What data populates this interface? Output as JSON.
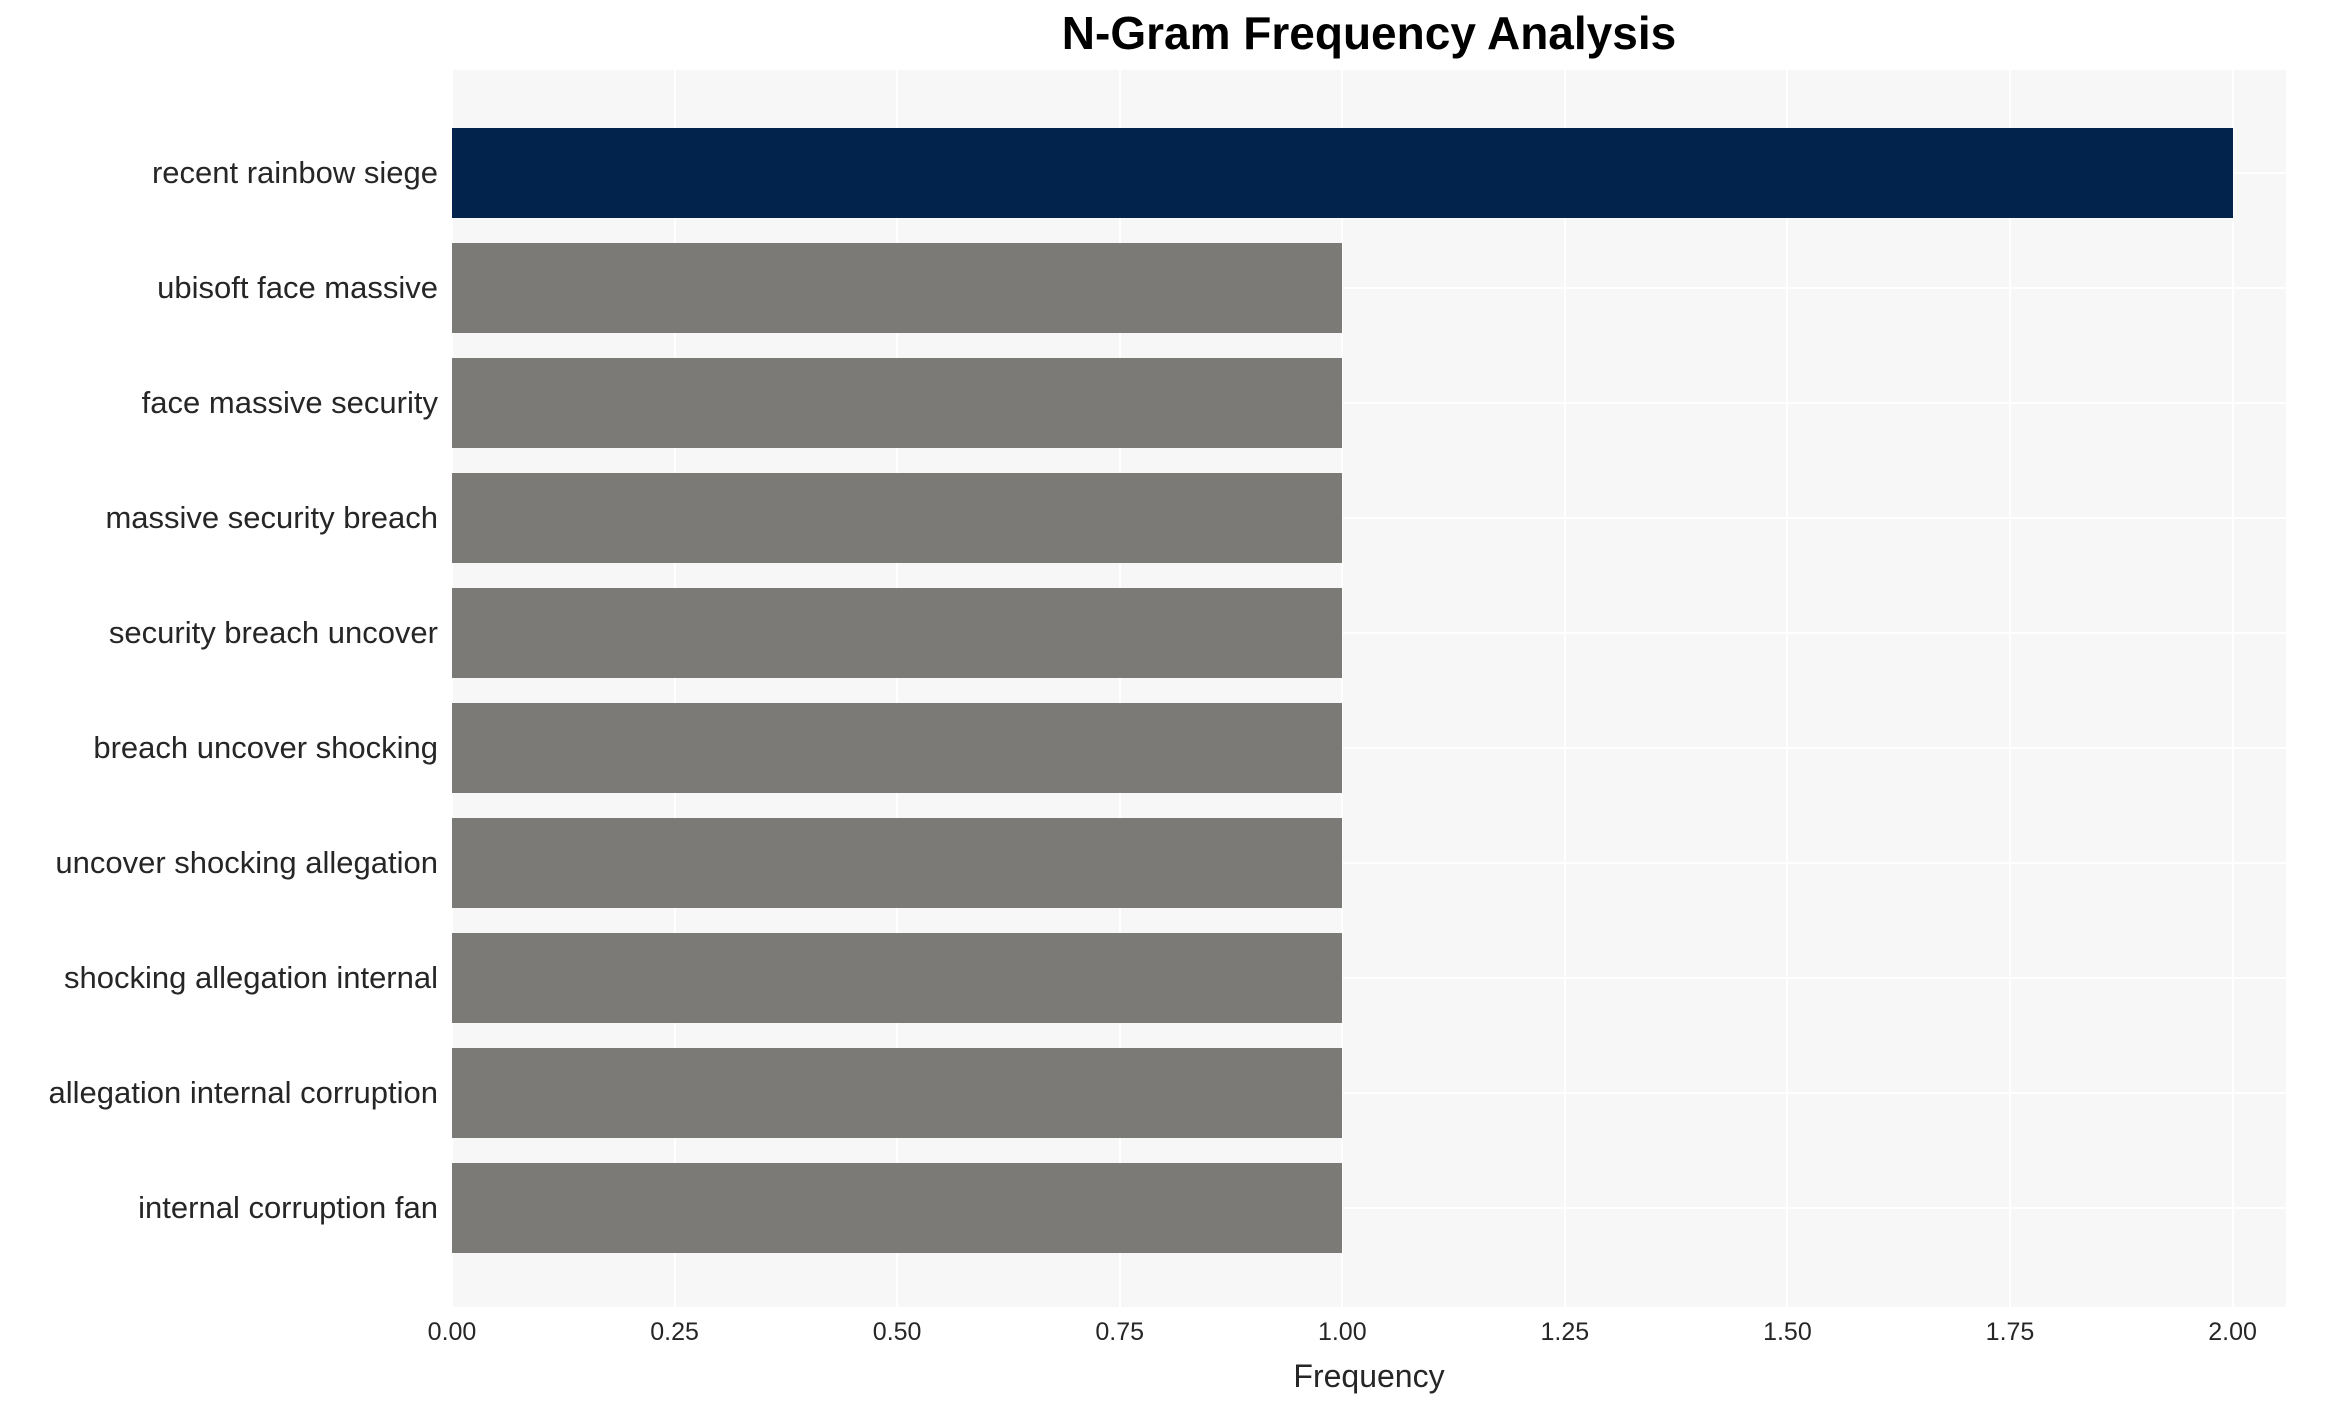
{
  "chart_data": {
    "type": "bar",
    "orientation": "horizontal",
    "title": "N-Gram Frequency Analysis",
    "xlabel": "Frequency",
    "ylabel": "",
    "categories": [
      "recent rainbow siege",
      "ubisoft face massive",
      "face massive security",
      "massive security breach",
      "security breach uncover",
      "breach uncover shocking",
      "uncover shocking allegation",
      "shocking allegation internal",
      "allegation internal corruption",
      "internal corruption fan"
    ],
    "values": [
      2,
      1,
      1,
      1,
      1,
      1,
      1,
      1,
      1,
      1
    ],
    "bar_colors": [
      "#02234C",
      "#7B7A77",
      "#7B7A77",
      "#7B7A77",
      "#7B7A77",
      "#7B7A77",
      "#7B7A77",
      "#7B7A77",
      "#7B7A77",
      "#7B7A77"
    ],
    "xlim": [
      0,
      2.06
    ],
    "xtick_labels": [
      "0.00",
      "0.25",
      "0.50",
      "0.75",
      "1.00",
      "1.25",
      "1.50",
      "1.75",
      "2.00"
    ],
    "xtick_values": [
      0,
      0.25,
      0.5,
      0.75,
      1.0,
      1.25,
      1.5,
      1.75,
      2.0
    ],
    "grid": true,
    "legend": "none",
    "colors": {
      "plot_background": "#F7F7F7",
      "figure_background": "#FFFFFF",
      "gridline": "#FFFFFF",
      "tick_text": "#262626",
      "label_text": "#262626",
      "title_text": "#000000"
    }
  }
}
